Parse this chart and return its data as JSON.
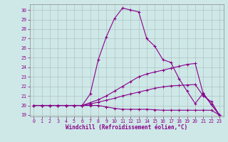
{
  "xlabel": "Windchill (Refroidissement éolien,°C)",
  "background_color": "#cee8e8",
  "line_color": "#880088",
  "grid_color": "#aabbbb",
  "xlim": [
    -0.5,
    23.5
  ],
  "ylim": [
    18.85,
    30.6
  ],
  "xticks": [
    0,
    1,
    2,
    3,
    4,
    5,
    6,
    7,
    8,
    9,
    10,
    11,
    12,
    13,
    14,
    15,
    16,
    17,
    18,
    19,
    20,
    21,
    22,
    23
  ],
  "yticks": [
    19,
    20,
    21,
    22,
    23,
    24,
    25,
    26,
    27,
    28,
    29,
    30
  ],
  "curve1_x": [
    0,
    1,
    2,
    3,
    4,
    5,
    6,
    7,
    8,
    9,
    10,
    11,
    12,
    13,
    14,
    15,
    16,
    17,
    18,
    19,
    20,
    21,
    22,
    23
  ],
  "curve1_y": [
    20.0,
    20.0,
    20.0,
    20.0,
    20.0,
    20.0,
    20.0,
    21.2,
    24.8,
    27.2,
    29.1,
    30.2,
    30.0,
    29.8,
    27.0,
    26.2,
    24.8,
    24.5,
    22.8,
    21.5,
    20.2,
    21.3,
    20.1,
    19.0
  ],
  "curve2_x": [
    0,
    1,
    2,
    3,
    4,
    5,
    6,
    7,
    8,
    9,
    10,
    11,
    12,
    13,
    14,
    15,
    16,
    17,
    18,
    19,
    20,
    21,
    22,
    23
  ],
  "curve2_y": [
    20.0,
    20.0,
    20.0,
    20.0,
    20.0,
    20.0,
    20.0,
    20.3,
    20.6,
    21.0,
    21.5,
    22.0,
    22.5,
    23.0,
    23.3,
    23.5,
    23.7,
    23.9,
    24.1,
    24.3,
    24.4,
    21.2,
    20.1,
    19.0
  ],
  "curve3_x": [
    0,
    1,
    2,
    3,
    4,
    5,
    6,
    7,
    8,
    9,
    10,
    11,
    12,
    13,
    14,
    15,
    16,
    17,
    18,
    19,
    20,
    21,
    22,
    23
  ],
  "curve3_y": [
    20.0,
    20.0,
    20.0,
    20.0,
    20.0,
    20.0,
    20.0,
    20.15,
    20.35,
    20.55,
    20.75,
    21.0,
    21.2,
    21.4,
    21.6,
    21.8,
    21.95,
    22.05,
    22.1,
    22.15,
    22.2,
    21.0,
    20.4,
    19.0
  ],
  "curve4_x": [
    0,
    1,
    2,
    3,
    4,
    5,
    6,
    7,
    8,
    9,
    10,
    11,
    12,
    13,
    14,
    15,
    16,
    17,
    18,
    19,
    20,
    21,
    22,
    23
  ],
  "curve4_y": [
    20.0,
    20.0,
    20.0,
    20.0,
    20.0,
    20.0,
    20.0,
    20.0,
    20.0,
    19.85,
    19.7,
    19.6,
    19.6,
    19.6,
    19.6,
    19.55,
    19.5,
    19.5,
    19.5,
    19.5,
    19.5,
    19.5,
    19.5,
    19.0
  ]
}
